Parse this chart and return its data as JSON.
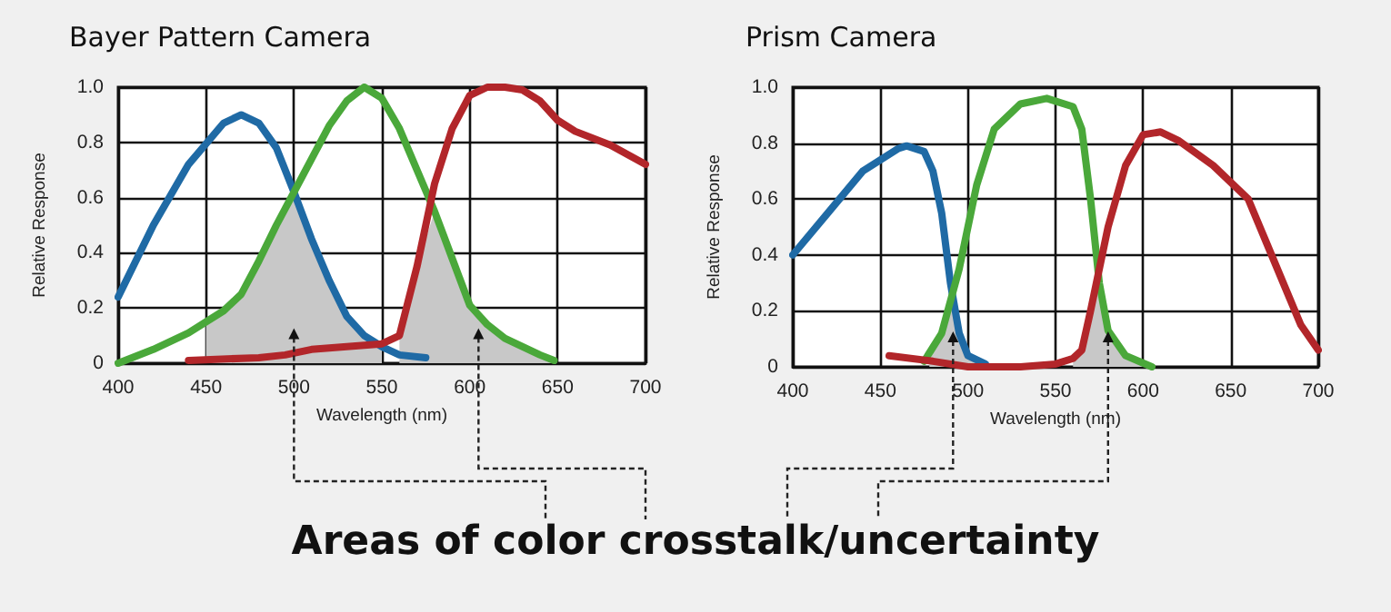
{
  "chart_data": [
    {
      "type": "line",
      "title": "Bayer Pattern Camera",
      "xlabel": "Wavelength (nm)",
      "ylabel": "Relative Response",
      "annotations": [
        "Areas of color crosstalk/uncertainty"
      ],
      "xlim": [
        400,
        700
      ],
      "xticks": [
        400,
        450,
        500,
        550,
        600,
        650,
        700
      ],
      "ylim": [
        0,
        1
      ],
      "yticks": [
        0,
        0.2,
        0.4,
        0.6,
        0.8,
        {
          "value": 1,
          "label": "1.0"
        }
      ],
      "grid": true,
      "series": [
        {
          "type": "area",
          "color": "#c8c8c8",
          "x": [
            450,
            460,
            470,
            480,
            490,
            500,
            510,
            520,
            530,
            540,
            550,
            555,
            560,
            570,
            580,
            590,
            600,
            610,
            620,
            640,
            650
          ],
          "values": [
            0.15,
            0.19,
            0.25,
            0.37,
            0.5,
            0.6,
            0.45,
            0.3,
            0.17,
            0.1,
            0.07,
            null,
            0.1,
            0.35,
            0.55,
            0.38,
            0.21,
            0.14,
            0.09,
            0.03,
            0
          ]
        },
        {
          "color": "#1f6aa5",
          "x": [
            400,
            420,
            440,
            460,
            470,
            480,
            490,
            500,
            510,
            520,
            530,
            540,
            550,
            560,
            575
          ],
          "values": [
            0.24,
            0.5,
            0.72,
            0.87,
            0.9,
            0.87,
            0.78,
            0.62,
            0.45,
            0.3,
            0.17,
            0.1,
            0.06,
            0.03,
            0.02
          ]
        },
        {
          "color": "#4aa83a",
          "x": [
            400,
            420,
            440,
            460,
            470,
            480,
            490,
            500,
            510,
            520,
            530,
            540,
            550,
            560,
            570,
            580,
            590,
            600,
            610,
            620,
            640,
            648
          ],
          "values": [
            0,
            0.05,
            0.11,
            0.19,
            0.25,
            0.37,
            0.5,
            0.62,
            0.74,
            0.86,
            0.95,
            1.0,
            0.96,
            0.85,
            0.7,
            0.55,
            0.38,
            0.21,
            0.14,
            0.09,
            0.03,
            0.01
          ]
        },
        {
          "color": "#b2262a",
          "x": [
            440,
            480,
            495,
            510,
            530,
            550,
            560,
            570,
            580,
            590,
            600,
            610,
            620,
            630,
            640,
            650,
            660,
            680,
            700
          ],
          "values": [
            0.01,
            0.02,
            0.03,
            0.05,
            0.06,
            0.07,
            0.1,
            0.35,
            0.65,
            0.85,
            0.97,
            1.0,
            1.0,
            0.99,
            0.95,
            0.88,
            0.84,
            0.79,
            0.72
          ]
        }
      ]
    },
    {
      "type": "line",
      "title": "Prism Camera",
      "xlabel": "Wavelength (nm)",
      "ylabel": "Relative Response",
      "xlim": [
        400,
        700
      ],
      "xticks": [
        400,
        450,
        500,
        550,
        600,
        650,
        700
      ],
      "ylim": [
        0,
        1
      ],
      "yticks": [
        0,
        0.2,
        0.4,
        0.6,
        0.8,
        {
          "value": 1,
          "label": "1.0"
        }
      ],
      "grid": true,
      "series": [
        {
          "type": "area",
          "color": "#c8c8c8",
          "x": [
            478,
            485,
            490,
            495,
            500,
            505,
            530,
            560,
            565,
            570,
            575,
            580,
            590,
            600
          ],
          "values": [
            0.02,
            0.12,
            0.22,
            0.12,
            0.04,
            0.01,
            null,
            0.03,
            0.06,
            0.2,
            0.3,
            0.13,
            0.04,
            0.01
          ]
        },
        {
          "color": "#1f6aa5",
          "x": [
            400,
            420,
            440,
            460,
            465,
            475,
            480,
            485,
            490,
            495,
            500,
            510
          ],
          "values": [
            0.4,
            0.55,
            0.7,
            0.78,
            0.79,
            0.77,
            0.7,
            0.55,
            0.3,
            0.12,
            0.04,
            0.01
          ]
        },
        {
          "color": "#4aa83a",
          "x": [
            475,
            485,
            495,
            505,
            515,
            530,
            545,
            560,
            565,
            570,
            575,
            580,
            590,
            605
          ],
          "values": [
            0.02,
            0.12,
            0.35,
            0.65,
            0.85,
            0.94,
            0.96,
            0.93,
            0.85,
            0.6,
            0.3,
            0.13,
            0.04,
            0
          ]
        },
        {
          "color": "#b2262a",
          "x": [
            455,
            480,
            500,
            530,
            550,
            560,
            565,
            570,
            580,
            590,
            600,
            610,
            620,
            640,
            660,
            670,
            680,
            690,
            700
          ],
          "values": [
            0.04,
            0.02,
            0,
            0,
            0.01,
            0.03,
            0.06,
            0.2,
            0.5,
            0.72,
            0.83,
            0.84,
            0.81,
            0.72,
            0.6,
            0.45,
            0.3,
            0.15,
            0.06
          ]
        }
      ]
    }
  ]
}
